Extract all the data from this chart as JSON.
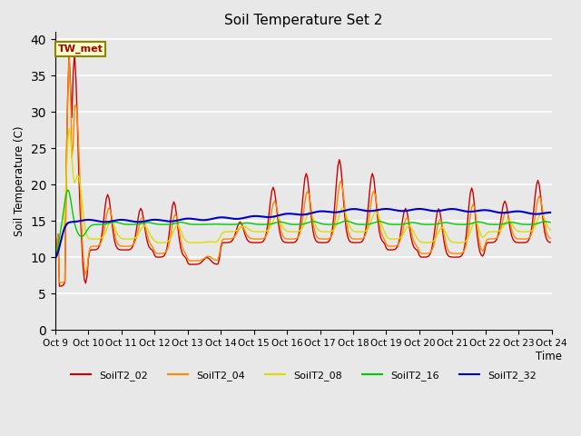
{
  "title": "Soil Temperature Set 2",
  "ylabel": "Soil Temperature (C)",
  "xlabel": "Time",
  "annotation": "TW_met",
  "ylim": [
    0,
    41
  ],
  "yticks": [
    0,
    5,
    10,
    15,
    20,
    25,
    30,
    35,
    40
  ],
  "x_labels": [
    "Oct 9",
    "Oct 10",
    "Oct 11",
    "Oct 12",
    "Oct 13",
    "Oct 14",
    "Oct 15",
    "Oct 16",
    "Oct 17",
    "Oct 18",
    "Oct 19",
    "Oct 20",
    "Oct 21",
    "Oct 22",
    "Oct 23",
    "Oct 24"
  ],
  "series_colors": {
    "SoilT2_02": "#cc0000",
    "SoilT2_04": "#ff8800",
    "SoilT2_08": "#dddd00",
    "SoilT2_16": "#00cc00",
    "SoilT2_32": "#0000cc"
  },
  "background_color": "#e8e8e8",
  "plot_bg_color": "#e8e8e8",
  "fig_bg_color": "#e8e8e8"
}
